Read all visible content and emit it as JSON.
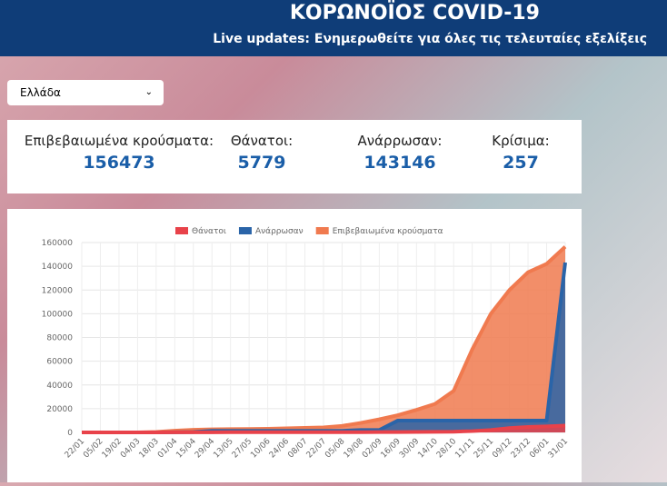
{
  "header": {
    "title": "ΚΟΡΩΝΟΪΟΣ COVID-19",
    "subtitle": "Live updates: Ενημερωθείτε για όλες τις τελευταίες εξελίξεις"
  },
  "country_select": "Ελλάδα",
  "stats": [
    {
      "label": "Επιβεβαιωμένα κρούσματα:",
      "value": 156473
    },
    {
      "label": "Θάνατοι:",
      "value": 5779
    },
    {
      "label": "Ανάρρωσαν:",
      "value": 143146
    },
    {
      "label": "Κρίσιμα:",
      "value": 257
    }
  ],
  "chart_data": {
    "type": "line",
    "fill": true,
    "grid": true,
    "categories": [
      "22/01",
      "05/02",
      "19/02",
      "04/03",
      "18/03",
      "01/04",
      "15/04",
      "29/04",
      "13/05",
      "27/05",
      "10/06",
      "24/06",
      "08/07",
      "22/07",
      "05/08",
      "19/08",
      "02/09",
      "16/09",
      "30/09",
      "14/10",
      "28/10",
      "11/11",
      "25/11",
      "09/12",
      "23/12",
      "06/01",
      "31/01"
    ],
    "series": [
      {
        "name": "Θάνατοι",
        "color": "#e8424a",
        "values": [
          0,
          0,
          0,
          0,
          5,
          50,
          110,
          140,
          150,
          160,
          180,
          190,
          195,
          205,
          210,
          230,
          270,
          330,
          390,
          520,
          600,
          1100,
          2000,
          3600,
          4600,
          5100,
          5779
        ]
      },
      {
        "name": "Ανάρρωσαν",
        "color": "#2a64a8",
        "values": [
          0,
          0,
          0,
          0,
          20,
          80,
          270,
          1374,
          1374,
          1374,
          1374,
          1374,
          1374,
          1374,
          1374,
          2000,
          2000,
          9989,
          9989,
          9989,
          9989,
          9989,
          9989,
          9989,
          9989,
          9989,
          143146
        ]
      },
      {
        "name": "Επιβεβαιωμένα κρούσματα",
        "color": "#f07a4f",
        "values": [
          0,
          0,
          0,
          5,
          400,
          1400,
          2200,
          2600,
          2800,
          2900,
          3100,
          3400,
          3800,
          4200,
          5500,
          8000,
          11000,
          14500,
          19000,
          24000,
          35000,
          70000,
          100000,
          120000,
          135000,
          142000,
          156473
        ]
      }
    ],
    "ylim": [
      0,
      160000
    ],
    "yticks": [
      0,
      20000,
      40000,
      60000,
      80000,
      100000,
      120000,
      140000,
      160000
    ]
  }
}
